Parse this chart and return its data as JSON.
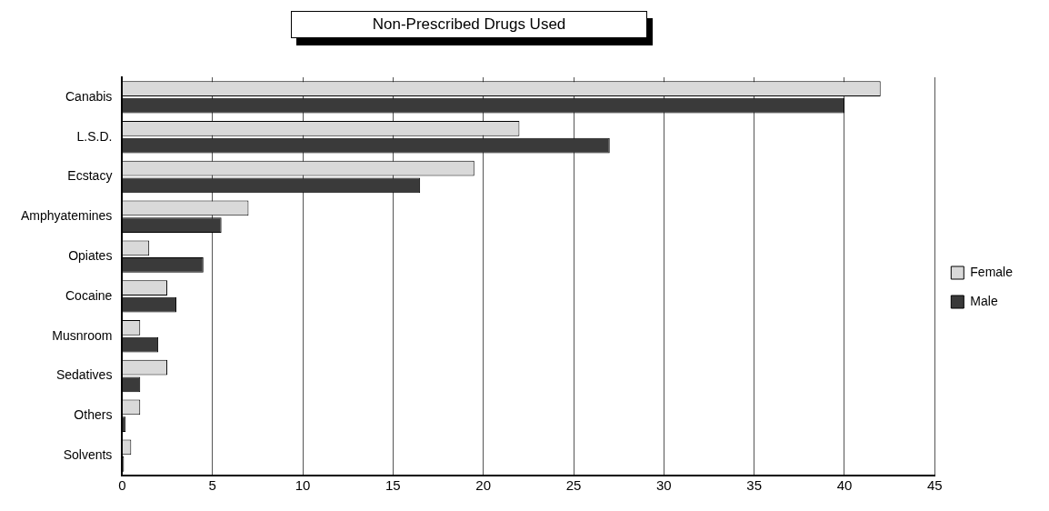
{
  "chart_data": {
    "type": "bar",
    "orientation": "horizontal",
    "title": "Non-Prescribed Drugs Used",
    "categories": [
      "Canabis",
      "L.S.D.",
      "Ecstacy",
      "Amphyatemines",
      "Opiates",
      "Cocaine",
      "Musnroom",
      "Sedatives",
      "Others",
      "Solvents"
    ],
    "series": [
      {
        "name": "Female",
        "color": "#d9d9d9",
        "values": [
          42,
          22,
          19.5,
          7,
          1.5,
          2.5,
          1,
          2.5,
          1,
          0.5
        ]
      },
      {
        "name": "Male",
        "color": "#3a3a3a",
        "values": [
          40,
          27,
          16.5,
          5.5,
          4.5,
          3,
          2,
          1,
          0.2,
          0.1
        ]
      }
    ],
    "xlim": [
      0,
      45
    ],
    "xticks": [
      0,
      5,
      10,
      15,
      20,
      25,
      30,
      35,
      40,
      45
    ],
    "grid": "x",
    "legend": "right"
  }
}
